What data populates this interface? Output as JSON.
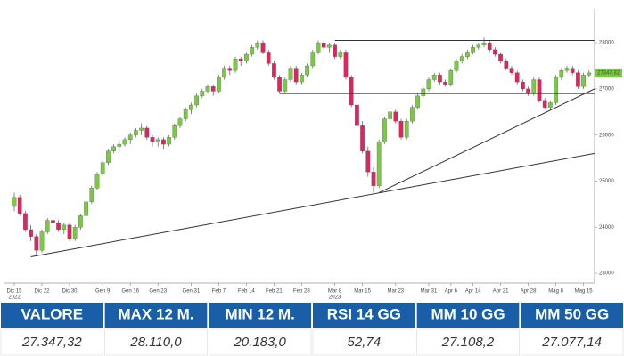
{
  "chart_data": {
    "type": "candlestick",
    "categories": [
      "Dic 15",
      null,
      null,
      null,
      null,
      "Dic 22",
      null,
      null,
      null,
      null,
      "Dic 30",
      null,
      null,
      null,
      null,
      null,
      "Gen 9",
      null,
      null,
      null,
      null,
      "Gen 16",
      null,
      null,
      null,
      null,
      "Gen 23",
      null,
      null,
      null,
      null,
      null,
      "Gen 31",
      null,
      null,
      null,
      null,
      "Feb 7",
      null,
      null,
      null,
      null,
      "Feb 14",
      null,
      null,
      null,
      null,
      "Feb 21",
      null,
      null,
      null,
      null,
      "Feb 28",
      null,
      null,
      null,
      null,
      null,
      "Mar 8",
      null,
      null,
      null,
      null,
      "Mar 15",
      null,
      null,
      null,
      null,
      null,
      "Mar 23",
      null,
      null,
      null,
      null,
      null,
      "Mar 31",
      null,
      null,
      null,
      "Apr 6",
      null,
      null,
      null,
      "Apr 14",
      null,
      null,
      null,
      null,
      "Apr 21",
      null,
      null,
      null,
      null,
      "Apr 28",
      null,
      null,
      null,
      null,
      "Mag 8",
      null,
      null,
      null,
      null,
      "Mag 15"
    ],
    "year_labels": [
      {
        "category": 0,
        "label": "2022"
      },
      {
        "category": 58,
        "label": "2023"
      }
    ],
    "ohlc": [
      [
        24450,
        24750,
        24350,
        24650
      ],
      [
        24650,
        24700,
        24250,
        24300
      ],
      [
        24300,
        24350,
        23900,
        23950
      ],
      [
        23950,
        24050,
        23700,
        23800
      ],
      [
        23800,
        23850,
        23400,
        23500
      ],
      [
        23500,
        23950,
        23450,
        23900
      ],
      [
        23900,
        24200,
        23850,
        24150
      ],
      [
        24150,
        24250,
        24000,
        24100
      ],
      [
        24100,
        24150,
        23900,
        23950
      ],
      [
        23950,
        24100,
        23850,
        24050
      ],
      [
        24050,
        24100,
        23700,
        23750
      ],
      [
        23750,
        24050,
        23700,
        24000
      ],
      [
        24000,
        24300,
        23950,
        24250
      ],
      [
        24250,
        24600,
        24200,
        24550
      ],
      [
        24550,
        24900,
        24500,
        24850
      ],
      [
        24850,
        25200,
        24800,
        25150
      ],
      [
        25150,
        25450,
        25100,
        25400
      ],
      [
        25400,
        25700,
        25350,
        25650
      ],
      [
        25650,
        25800,
        25600,
        25750
      ],
      [
        25750,
        25900,
        25650,
        25800
      ],
      [
        25800,
        25950,
        25750,
        25900
      ],
      [
        25900,
        26050,
        25800,
        26000
      ],
      [
        26000,
        26150,
        25950,
        26100
      ],
      [
        26100,
        26250,
        26000,
        26150
      ],
      [
        26150,
        26200,
        25900,
        25950
      ],
      [
        25950,
        26000,
        25750,
        25850
      ],
      [
        25850,
        25950,
        25750,
        25900
      ],
      [
        25900,
        25950,
        25700,
        25800
      ],
      [
        25800,
        26000,
        25750,
        25950
      ],
      [
        25950,
        26250,
        25900,
        26200
      ],
      [
        26200,
        26400,
        26150,
        26350
      ],
      [
        26350,
        26600,
        26300,
        26550
      ],
      [
        26550,
        26700,
        26450,
        26650
      ],
      [
        26650,
        26900,
        26600,
        26850
      ],
      [
        26850,
        27000,
        26800,
        26950
      ],
      [
        26950,
        27100,
        26900,
        27050
      ],
      [
        27050,
        27100,
        26850,
        26950
      ],
      [
        26950,
        27300,
        26900,
        27250
      ],
      [
        27250,
        27500,
        27200,
        27450
      ],
      [
        27450,
        27500,
        27300,
        27400
      ],
      [
        27400,
        27700,
        27350,
        27650
      ],
      [
        27650,
        27700,
        27500,
        27600
      ],
      [
        27600,
        27800,
        27550,
        27750
      ],
      [
        27750,
        27950,
        27700,
        27900
      ],
      [
        27900,
        28050,
        27850,
        28000
      ],
      [
        28000,
        28050,
        27750,
        27800
      ],
      [
        27800,
        27850,
        27500,
        27550
      ],
      [
        27550,
        27600,
        27200,
        27250
      ],
      [
        27250,
        27300,
        26900,
        26950
      ],
      [
        26950,
        27250,
        26900,
        27200
      ],
      [
        27200,
        27500,
        27150,
        27450
      ],
      [
        27450,
        27500,
        27100,
        27150
      ],
      [
        27150,
        27350,
        27100,
        27300
      ],
      [
        27300,
        27550,
        27250,
        27500
      ],
      [
        27500,
        27850,
        27450,
        27800
      ],
      [
        27800,
        28050,
        27750,
        28000
      ],
      [
        28000,
        28050,
        27850,
        27900
      ],
      [
        27900,
        28000,
        27800,
        27950
      ],
      [
        27950,
        28000,
        27650,
        27700
      ],
      [
        27700,
        27850,
        27650,
        27800
      ],
      [
        27800,
        27850,
        27200,
        27250
      ],
      [
        27250,
        27300,
        26600,
        26650
      ],
      [
        26650,
        26750,
        26100,
        26200
      ],
      [
        26200,
        26300,
        25600,
        25650
      ],
      [
        25650,
        25750,
        25100,
        25200
      ],
      [
        25200,
        25300,
        24750,
        24900
      ],
      [
        24900,
        25900,
        24850,
        25850
      ],
      [
        25850,
        26400,
        25800,
        26350
      ],
      [
        26350,
        26600,
        26300,
        26500
      ],
      [
        26500,
        26550,
        26250,
        26300
      ],
      [
        26300,
        26350,
        25900,
        25950
      ],
      [
        25950,
        26350,
        25900,
        26300
      ],
      [
        26300,
        26650,
        26250,
        26600
      ],
      [
        26600,
        26900,
        26550,
        26850
      ],
      [
        26850,
        27050,
        26800,
        27000
      ],
      [
        27000,
        27250,
        26950,
        27200
      ],
      [
        27200,
        27350,
        27150,
        27300
      ],
      [
        27300,
        27350,
        27100,
        27150
      ],
      [
        27150,
        27200,
        27050,
        27100
      ],
      [
        27100,
        27450,
        27050,
        27400
      ],
      [
        27400,
        27650,
        27350,
        27600
      ],
      [
        27600,
        27750,
        27550,
        27700
      ],
      [
        27700,
        27850,
        27650,
        27800
      ],
      [
        27800,
        27950,
        27750,
        27900
      ],
      [
        27900,
        28000,
        27850,
        27950
      ],
      [
        27950,
        28110,
        27900,
        28000
      ],
      [
        28000,
        28050,
        27800,
        27850
      ],
      [
        27850,
        27900,
        27700,
        27750
      ],
      [
        27750,
        27800,
        27550,
        27600
      ],
      [
        27600,
        27650,
        27400,
        27450
      ],
      [
        27450,
        27500,
        27300,
        27350
      ],
      [
        27350,
        27400,
        27100,
        27150
      ],
      [
        27150,
        27200,
        26950,
        27000
      ],
      [
        27000,
        27050,
        26850,
        26900
      ],
      [
        26900,
        27250,
        26850,
        27200
      ],
      [
        27200,
        27250,
        26700,
        26750
      ],
      [
        26750,
        26800,
        26550,
        26600
      ],
      [
        26600,
        26750,
        26550,
        26700
      ],
      [
        26700,
        27300,
        26650,
        27250
      ],
      [
        27250,
        27450,
        27200,
        27400
      ],
      [
        27400,
        27500,
        27350,
        27450
      ],
      [
        27450,
        27500,
        27300,
        27350
      ],
      [
        27350,
        27400,
        27000,
        27050
      ],
      [
        27050,
        27350,
        27000,
        27300
      ],
      [
        27300,
        27400,
        27250,
        27347
      ]
    ],
    "up_color": "#7ac943",
    "down_color": "#e0245e",
    "trend_lines": [
      {
        "x": [
          3,
          105
        ],
        "y": [
          23360,
          25600
        ]
      },
      {
        "x": [
          66,
          105
        ],
        "y": [
          24750,
          27000
        ]
      },
      {
        "x": [
          58,
          105
        ],
        "y": [
          28050,
          28050
        ]
      },
      {
        "x": [
          48,
          105
        ],
        "y": [
          26900,
          26900
        ]
      }
    ],
    "last_value": 27347.32,
    "ylim": [
      22790,
      28735
    ],
    "yticks": [
      23000,
      24000,
      25000,
      26000,
      27000,
      28000
    ]
  },
  "table": {
    "headers": [
      "VALORE",
      "MAX 12 M.",
      "MIN 12 M.",
      "RSI 14 GG",
      "MM 10 GG",
      "MM 50 GG"
    ],
    "rows": [
      [
        "27.347,32",
        "28.110,0",
        "20.183,0",
        "52,74",
        "27.108,2",
        "27.077,14"
      ]
    ]
  }
}
